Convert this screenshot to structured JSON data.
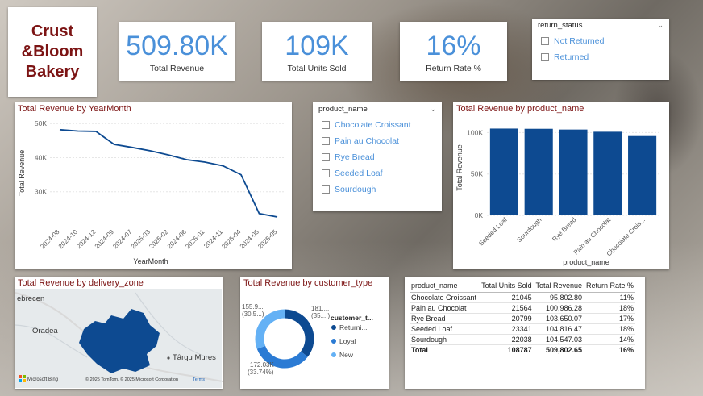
{
  "logo": {
    "text": "Crust\n&Bloom\nBakery"
  },
  "kpis": [
    {
      "value": "509.80K",
      "label": "Total Revenue"
    },
    {
      "value": "109K",
      "label": "Total Units Sold"
    },
    {
      "value": "16%",
      "label": "Return Rate %"
    }
  ],
  "return_status_slicer": {
    "title": "return_status",
    "options": [
      "Not Returned",
      "Returned"
    ]
  },
  "product_slicer": {
    "title": "product_name",
    "options": [
      "Chocolate Croissant",
      "Pain au Chocolat",
      "Rye Bread",
      "Seeded Loaf",
      "Sourdough"
    ]
  },
  "line_chart": {
    "title": "Total Revenue by YearMonth"
  },
  "bar_chart": {
    "title": "Total Revenue by product_name"
  },
  "map": {
    "title": "Total Revenue by delivery_zone",
    "labels": [
      "ebrecen",
      "Oradea",
      "Târgu Mureș"
    ],
    "attribution": "© 2025 TomTom, © 2025 Microsoft Corporation",
    "terms": "Terms",
    "bing": "Microsoft Bing"
  },
  "donut_chart": {
    "title": "Total Revenue by customer_type"
  },
  "table": {
    "headers": [
      "product_name",
      "Total Units Sold",
      "Total Revenue",
      "Return Rate %"
    ],
    "rows": [
      [
        "Chocolate Croissant",
        "21045",
        "95,802.80",
        "11%"
      ],
      [
        "Pain au Chocolat",
        "21564",
        "100,986.28",
        "18%"
      ],
      [
        "Rye Bread",
        "20799",
        "103,650.07",
        "17%"
      ],
      [
        "Seeded Loaf",
        "23341",
        "104,816.47",
        "18%"
      ],
      [
        "Sourdough",
        "22038",
        "104,547.03",
        "14%"
      ]
    ],
    "total": [
      "Total",
      "108787",
      "509,802.65",
      "16%"
    ]
  },
  "colors": {
    "accent": "#4a90d9",
    "brand": "#7c1414",
    "bar": "#0d4a91",
    "donut": [
      "#0d4a91",
      "#2b7bd4",
      "#64b1f5"
    ]
  },
  "chart_data": [
    {
      "type": "line",
      "title": "Total Revenue by YearMonth",
      "xlabel": "YearMonth",
      "ylabel": "Total Revenue",
      "categories": [
        "2024-08",
        "2024-10",
        "2024-12",
        "2024-09",
        "2024-07",
        "2025-03",
        "2025-02",
        "2024-06",
        "2025-01",
        "2024-11",
        "2025-04",
        "2024-05",
        "2025-05"
      ],
      "y_ticks": [
        "50K",
        "40K",
        "30K"
      ],
      "values": [
        48200,
        47800,
        47700,
        43900,
        43000,
        42000,
        40800,
        39400,
        38700,
        37600,
        35000,
        23600,
        22600
      ],
      "ylim": [
        20000,
        51000
      ],
      "grid": true
    },
    {
      "type": "bar",
      "title": "Total Revenue by product_name",
      "xlabel": "product_name",
      "ylabel": "Total Revenue",
      "categories": [
        "Seeded Loaf",
        "Sourdough",
        "Rye Bread",
        "Pain au Chocolat",
        "Chocolate Crois..."
      ],
      "values": [
        104816.47,
        104547.03,
        103650.07,
        100986.28,
        95802.8
      ],
      "y_ticks": [
        "100K",
        "50K",
        "0K"
      ],
      "ylim": [
        0,
        115000
      ],
      "grid": true
    },
    {
      "type": "pie",
      "title": "Total Revenue by customer_type",
      "legend_title": "customer_t...",
      "legend_position": "right",
      "categories": [
        "Returni...",
        "Loyal",
        "New"
      ],
      "values": [
        181000,
        172030,
        155900
      ],
      "data_labels": [
        {
          "value": "181....",
          "pct": "(35....)"
        },
        {
          "value": "172.03K",
          "pct": "(33.74%)"
        },
        {
          "value": "155.9...",
          "pct": "(30.5...)"
        }
      ]
    }
  ]
}
